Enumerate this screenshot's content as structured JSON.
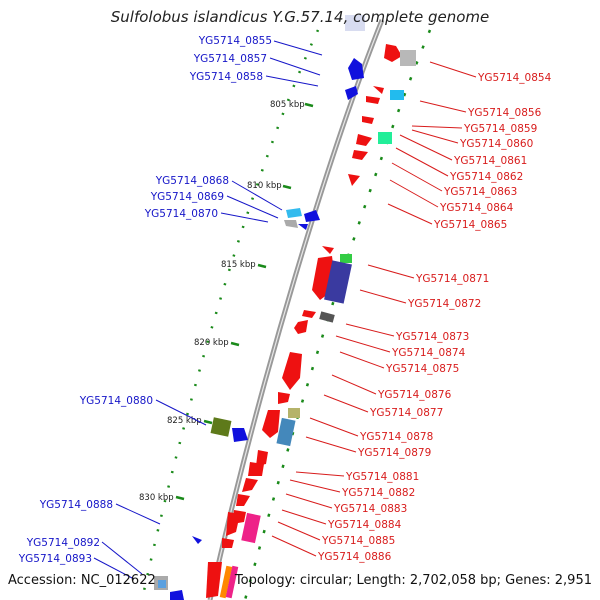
{
  "title": "Sulfolobus islandicus Y.G.57.14, complete genome",
  "footer": {
    "accession": "Accession: NC_012622",
    "topology": "Topology: circular; Length: 2,702,058 bp; Genes: 2,951"
  },
  "colors": {
    "left_label": "#1616c8",
    "right_label": "#d81c1c",
    "backbone": "#888888",
    "tick": "#1a8a1a"
  },
  "kbp_markers": [
    {
      "label": "805 kbp"
    },
    {
      "label": "810 kbp"
    },
    {
      "label": "815 kbp"
    },
    {
      "label": "820 kbp"
    },
    {
      "label": "825 kbp"
    },
    {
      "label": "830 kbp"
    }
  ],
  "left_genes": [
    {
      "label": "YG5714_0855"
    },
    {
      "label": "YG5714_0857"
    },
    {
      "label": "YG5714_0858"
    },
    {
      "label": "YG5714_0868"
    },
    {
      "label": "YG5714_0869"
    },
    {
      "label": "YG5714_0870"
    },
    {
      "label": "YG5714_0880"
    },
    {
      "label": "YG5714_0888"
    },
    {
      "label": "YG5714_0892"
    },
    {
      "label": "YG5714_0893"
    }
  ],
  "right_genes": [
    {
      "label": "YG5714_0854"
    },
    {
      "label": "YG5714_0856"
    },
    {
      "label": "YG5714_0859"
    },
    {
      "label": "YG5714_0860"
    },
    {
      "label": "YG5714_0861"
    },
    {
      "label": "YG5714_0862"
    },
    {
      "label": "YG5714_0863"
    },
    {
      "label": "YG5714_0864"
    },
    {
      "label": "YG5714_0865"
    },
    {
      "label": "YG5714_0871"
    },
    {
      "label": "YG5714_0872"
    },
    {
      "label": "YG5714_0873"
    },
    {
      "label": "YG5714_0874"
    },
    {
      "label": "YG5714_0875"
    },
    {
      "label": "YG5714_0876"
    },
    {
      "label": "YG5714_0877"
    },
    {
      "label": "YG5714_0878"
    },
    {
      "label": "YG5714_0879"
    },
    {
      "label": "YG5714_0881"
    },
    {
      "label": "YG5714_0882"
    },
    {
      "label": "YG5714_0883"
    },
    {
      "label": "YG5714_0884"
    },
    {
      "label": "YG5714_0885"
    },
    {
      "label": "YG5714_0886"
    }
  ]
}
